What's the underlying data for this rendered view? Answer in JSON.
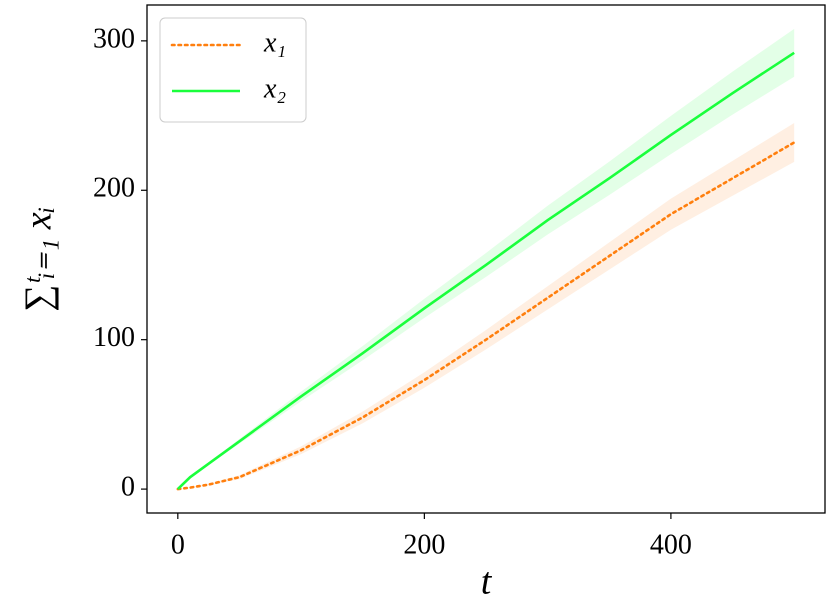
{
  "chart_data": {
    "type": "line",
    "x_label": "t",
    "y_label": "∑ᵗᵢ₌₁ xᵢ",
    "x": [
      0,
      10,
      25,
      50,
      100,
      150,
      200,
      250,
      300,
      350,
      400,
      450,
      500
    ],
    "series": [
      {
        "name": "x₁",
        "color": "#ff7f0e",
        "dash": "dotted",
        "values": [
          0,
          1,
          3,
          8,
          26,
          48,
          73,
          100,
          128,
          156,
          184,
          208,
          232
        ],
        "lower": [
          0,
          0.7,
          2.4,
          6.7,
          23.4,
          44.1,
          67.8,
          93.5,
          120.2,
          146.9,
          173.6,
          196.3,
          219
        ],
        "upper": [
          0,
          1.3,
          3.7,
          9.3,
          28.6,
          51.9,
          78.2,
          106.5,
          135.8,
          165.1,
          194.4,
          219.7,
          245
        ]
      },
      {
        "name": "x₂",
        "color": "#1aff3c",
        "dash": "solid",
        "values": [
          0,
          8,
          17,
          32,
          62,
          91,
          121,
          150,
          180,
          208,
          237,
          265,
          292
        ],
        "lower": [
          0,
          7.7,
          16.2,
          30.4,
          58.8,
          86.2,
          114.6,
          142,
          170.4,
          196.8,
          224.2,
          250.6,
          276
        ],
        "upper": [
          0,
          8.3,
          17.8,
          33.6,
          65.2,
          95.8,
          127.4,
          158,
          189.6,
          219.2,
          249.8,
          279.4,
          308
        ]
      }
    ],
    "xlim": [
      -25,
      525
    ],
    "xticks": [
      0,
      200,
      400
    ],
    "ylim": [
      -16,
      324
    ],
    "yticks": [
      0,
      100,
      200,
      300
    ],
    "legend": "upper left"
  }
}
